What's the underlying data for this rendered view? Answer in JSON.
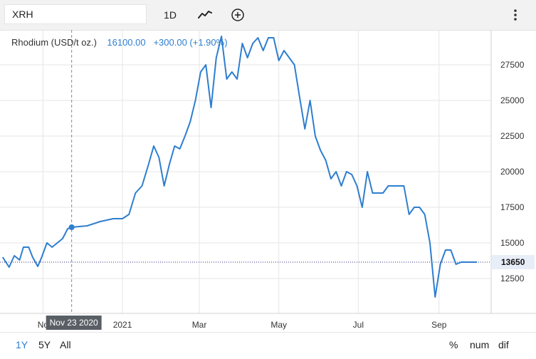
{
  "toolbar": {
    "symbol": "XRH",
    "interval": "1D",
    "chart_type_icon": "line-chart-icon",
    "add_icon": "plus-circle-icon",
    "menu_icon": "vertical-dots-icon"
  },
  "legend": {
    "name": "Rhodium (USD/t oz.)",
    "price": "16100.00",
    "change": "+300.00 (+1.90%)"
  },
  "crosshair": {
    "date_label": "Nov 23 2020",
    "value": 16100
  },
  "last_price_label": "13650",
  "range_buttons": {
    "y1": "1Y",
    "y5": "5Y",
    "all": "All"
  },
  "mode_buttons": {
    "percent": "%",
    "num": "num",
    "dif": "dif"
  },
  "colors": {
    "line": "#2e7ecf",
    "marker_bg": "#5a5f66",
    "price_label_bg": "#e8eef7"
  },
  "chart_data": {
    "type": "line",
    "title": "Rhodium (USD/t oz.)",
    "xlabel": "",
    "ylabel": "",
    "ylim": [
      10000,
      29500
    ],
    "y_ticks": [
      12500,
      15000,
      17500,
      20000,
      22500,
      25000,
      27500
    ],
    "x_ticks": [
      "No",
      "2021",
      "Mar",
      "May",
      "Jul",
      "Sep"
    ],
    "grid": true,
    "last_value": 13650,
    "series": [
      {
        "name": "Rhodium (USD/t oz.)",
        "x": [
          "2020-10-01",
          "2020-10-06",
          "2020-10-10",
          "2020-10-14",
          "2020-10-17",
          "2020-10-21",
          "2020-10-24",
          "2020-10-28",
          "2020-10-31",
          "2020-11-04",
          "2020-11-08",
          "2020-11-12",
          "2020-11-16",
          "2020-11-20",
          "2020-11-23",
          "2020-12-05",
          "2020-12-15",
          "2020-12-25",
          "2021-01-01",
          "2021-01-06",
          "2021-01-11",
          "2021-01-16",
          "2021-01-21",
          "2021-01-25",
          "2021-01-29",
          "2021-02-02",
          "2021-02-06",
          "2021-02-10",
          "2021-02-14",
          "2021-02-18",
          "2021-02-22",
          "2021-02-26",
          "2021-03-02",
          "2021-03-06",
          "2021-03-10",
          "2021-03-14",
          "2021-03-18",
          "2021-03-22",
          "2021-03-26",
          "2021-03-30",
          "2021-04-03",
          "2021-04-07",
          "2021-04-11",
          "2021-04-15",
          "2021-04-19",
          "2021-04-23",
          "2021-04-27",
          "2021-05-01",
          "2021-05-05",
          "2021-05-09",
          "2021-05-13",
          "2021-05-17",
          "2021-05-21",
          "2021-05-25",
          "2021-05-29",
          "2021-06-02",
          "2021-06-06",
          "2021-06-10",
          "2021-06-14",
          "2021-06-18",
          "2021-06-22",
          "2021-06-26",
          "2021-06-30",
          "2021-07-04",
          "2021-07-08",
          "2021-07-12",
          "2021-07-16",
          "2021-07-20",
          "2021-07-24",
          "2021-07-28",
          "2021-08-01",
          "2021-08-05",
          "2021-08-09",
          "2021-08-13",
          "2021-08-17",
          "2021-08-21",
          "2021-08-25",
          "2021-08-29",
          "2021-09-02",
          "2021-09-06",
          "2021-09-10",
          "2021-09-14",
          "2021-09-18",
          "2021-09-22",
          "2021-09-26",
          "2021-09-30"
        ],
        "values": [
          14000,
          13300,
          14100,
          13800,
          14700,
          14700,
          14000,
          13350,
          14000,
          15000,
          14700,
          15000,
          15300,
          16000,
          16100,
          16200,
          16500,
          16700,
          16700,
          17000,
          18500,
          19000,
          20500,
          21800,
          21000,
          19000,
          20500,
          21800,
          21600,
          22500,
          23500,
          25000,
          27000,
          27500,
          24500,
          28000,
          29500,
          26500,
          27000,
          26500,
          29000,
          28000,
          29000,
          29400,
          28500,
          29400,
          29400,
          27800,
          28500,
          28000,
          27500,
          25200,
          23000,
          25000,
          22500,
          21500,
          20800,
          19500,
          20000,
          19000,
          20000,
          19800,
          19000,
          17500,
          20000,
          18500,
          18500,
          18500,
          19000,
          19000,
          19000,
          19000,
          17000,
          17500,
          17500,
          17000,
          15000,
          11200,
          13500,
          14500,
          14500,
          13500,
          13650,
          13650,
          13650,
          13650
        ]
      }
    ]
  }
}
